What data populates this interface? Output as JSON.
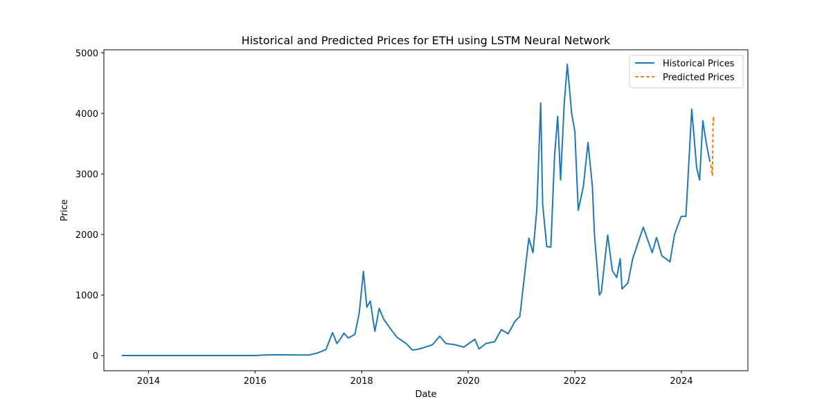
{
  "chart_data": {
    "type": "line",
    "title": "Historical and Predicted Prices for ETH using LSTM Neural Network",
    "xlabel": "Date",
    "ylabel": "Price",
    "xlim": [
      "2013-03-01",
      "2025-04-01"
    ],
    "ylim": [
      -250,
      5050
    ],
    "x_ticks": [
      "2014",
      "2016",
      "2018",
      "2020",
      "2022",
      "2024"
    ],
    "y_ticks": [
      0,
      1000,
      2000,
      3000,
      4000,
      5000
    ],
    "grid": false,
    "legend_position": "top-right",
    "series": [
      {
        "name": "Historical Prices",
        "color": "#1f77b4",
        "style": "solid",
        "points": [
          [
            "2013-07-01",
            1
          ],
          [
            "2014-01-01",
            1
          ],
          [
            "2015-01-01",
            1
          ],
          [
            "2016-01-01",
            1
          ],
          [
            "2016-03-01",
            10
          ],
          [
            "2016-06-01",
            14
          ],
          [
            "2016-09-01",
            12
          ],
          [
            "2017-01-01",
            9
          ],
          [
            "2017-03-01",
            40
          ],
          [
            "2017-05-01",
            100
          ],
          [
            "2017-06-15",
            380
          ],
          [
            "2017-07-15",
            200
          ],
          [
            "2017-08-15",
            300
          ],
          [
            "2017-09-01",
            370
          ],
          [
            "2017-10-01",
            290
          ],
          [
            "2017-11-15",
            350
          ],
          [
            "2017-12-15",
            700
          ],
          [
            "2018-01-13",
            1390
          ],
          [
            "2018-02-05",
            800
          ],
          [
            "2018-03-01",
            900
          ],
          [
            "2018-04-01",
            400
          ],
          [
            "2018-05-01",
            780
          ],
          [
            "2018-06-01",
            600
          ],
          [
            "2018-07-15",
            450
          ],
          [
            "2018-09-01",
            300
          ],
          [
            "2018-11-01",
            200
          ],
          [
            "2018-12-15",
            90
          ],
          [
            "2019-02-01",
            110
          ],
          [
            "2019-05-01",
            180
          ],
          [
            "2019-06-20",
            320
          ],
          [
            "2019-08-01",
            200
          ],
          [
            "2019-10-01",
            180
          ],
          [
            "2019-12-01",
            140
          ],
          [
            "2020-02-15",
            270
          ],
          [
            "2020-03-15",
            110
          ],
          [
            "2020-05-01",
            200
          ],
          [
            "2020-07-01",
            230
          ],
          [
            "2020-08-15",
            430
          ],
          [
            "2020-10-01",
            360
          ],
          [
            "2020-11-15",
            560
          ],
          [
            "2020-12-20",
            650
          ],
          [
            "2021-01-20",
            1300
          ],
          [
            "2021-02-20",
            1940
          ],
          [
            "2021-03-20",
            1700
          ],
          [
            "2021-04-15",
            2400
          ],
          [
            "2021-05-12",
            4170
          ],
          [
            "2021-05-25",
            2500
          ],
          [
            "2021-06-22",
            1800
          ],
          [
            "2021-07-20",
            1790
          ],
          [
            "2021-08-15",
            3300
          ],
          [
            "2021-09-05",
            3950
          ],
          [
            "2021-09-25",
            2900
          ],
          [
            "2021-10-20",
            4150
          ],
          [
            "2021-11-10",
            4810
          ],
          [
            "2021-12-10",
            4000
          ],
          [
            "2022-01-01",
            3700
          ],
          [
            "2022-01-24",
            2400
          ],
          [
            "2022-03-01",
            2800
          ],
          [
            "2022-04-01",
            3520
          ],
          [
            "2022-05-01",
            2800
          ],
          [
            "2022-05-15",
            2000
          ],
          [
            "2022-06-18",
            1000
          ],
          [
            "2022-07-01",
            1050
          ],
          [
            "2022-08-14",
            1990
          ],
          [
            "2022-09-15",
            1400
          ],
          [
            "2022-10-15",
            1290
          ],
          [
            "2022-11-08",
            1600
          ],
          [
            "2022-11-20",
            1100
          ],
          [
            "2022-12-31",
            1200
          ],
          [
            "2023-02-01",
            1600
          ],
          [
            "2023-04-15",
            2120
          ],
          [
            "2023-06-15",
            1700
          ],
          [
            "2023-07-15",
            1950
          ],
          [
            "2023-08-20",
            1650
          ],
          [
            "2023-10-15",
            1550
          ],
          [
            "2023-11-15",
            2000
          ],
          [
            "2023-12-31",
            2300
          ],
          [
            "2024-02-01",
            2300
          ],
          [
            "2024-03-12",
            4070
          ],
          [
            "2024-04-15",
            3100
          ],
          [
            "2024-05-05",
            2900
          ],
          [
            "2024-05-27",
            3880
          ],
          [
            "2024-06-20",
            3500
          ],
          [
            "2024-07-15",
            3200
          ]
        ]
      },
      {
        "name": "Predicted Prices",
        "color": "#ff7f0e",
        "style": "dashed",
        "points": [
          [
            "2024-07-20",
            3150
          ],
          [
            "2024-07-27",
            3050
          ],
          [
            "2024-08-01",
            2970
          ],
          [
            "2024-08-05",
            3800
          ],
          [
            "2024-08-08",
            3950
          ],
          [
            "2024-08-10",
            3830
          ]
        ]
      }
    ]
  }
}
